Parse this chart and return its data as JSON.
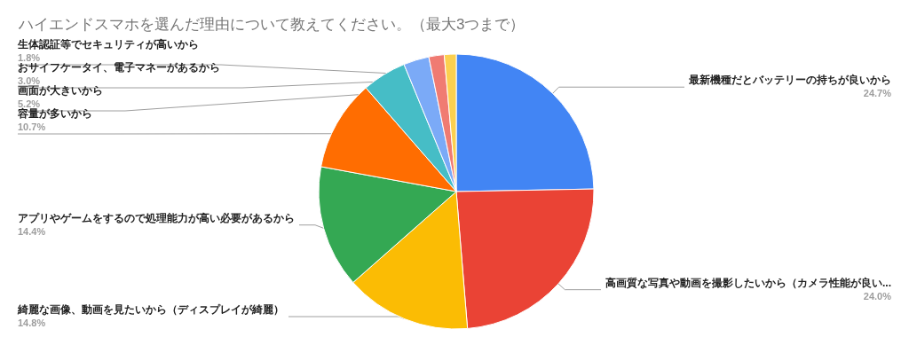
{
  "chart_data": {
    "type": "pie",
    "title": "ハイエンドスマホを選んだ理由について教えてください。（最大3つまで）",
    "categories": [
      "最新機種だとバッテリーの持ちが良いから",
      "高画質な写真や動画を撮影したいから（カメラ性能が良い...",
      "綺麗な画像、動画を見たいから（ディスプレイが綺麗）",
      "アプリやゲームをするので処理能力が高い必要があるから",
      "容量が多いから",
      "画面が大きいから",
      "おサイフケータイ、電子マネーがあるから",
      "生体認証等でセキュリティが高いから",
      null
    ],
    "values": [
      24.7,
      24.0,
      14.8,
      14.4,
      10.7,
      5.2,
      3.0,
      1.8,
      1.4
    ],
    "value_labels": [
      "24.7%",
      "24.0%",
      "14.8%",
      "14.4%",
      "10.7%",
      "5.2%",
      "3.0%",
      "1.8%",
      null
    ],
    "colors": [
      "#4285f4",
      "#ea4335",
      "#fbbc04",
      "#34a853",
      "#ff6d01",
      "#46bdc6",
      "#7baaf7",
      "#f07b72",
      "#fcd04f"
    ],
    "legend": false
  }
}
